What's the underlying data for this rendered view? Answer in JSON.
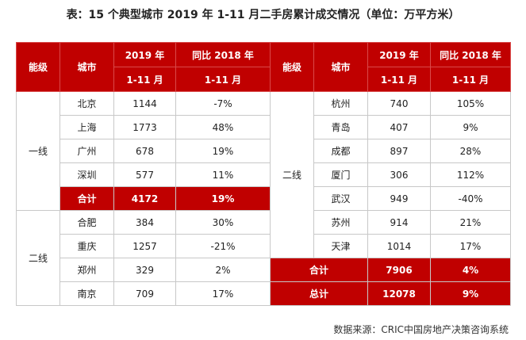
{
  "title": "表：15 个典型城市 2019 年 1-11 月二手房累计成交情况（单位：万平方米）",
  "headers": {
    "level": "能级",
    "city": "城市",
    "year_line1": "2019 年",
    "year_line2": "1-11 月",
    "yoy_line1": "同比 2018 年",
    "yoy_line2": "1-11 月"
  },
  "left_groups": [
    {
      "level": "一线",
      "rows": [
        {
          "city": "北京",
          "value": "1144",
          "yoy": "-7%"
        },
        {
          "city": "上海",
          "value": "1773",
          "yoy": "48%"
        },
        {
          "city": "广州",
          "value": "678",
          "yoy": "19%"
        },
        {
          "city": "深圳",
          "value": "577",
          "yoy": "11%"
        }
      ],
      "subtotal": {
        "label": "合计",
        "value": "4172",
        "yoy": "19%"
      }
    },
    {
      "level": "二线",
      "rows": [
        {
          "city": "合肥",
          "value": "384",
          "yoy": "30%"
        },
        {
          "city": "重庆",
          "value": "1257",
          "yoy": "-21%"
        },
        {
          "city": "郑州",
          "value": "329",
          "yoy": "2%"
        },
        {
          "city": "南京",
          "value": "709",
          "yoy": "17%"
        }
      ]
    }
  ],
  "right_group": {
    "level": "二线",
    "rows": [
      {
        "city": "杭州",
        "value": "740",
        "yoy": "105%"
      },
      {
        "city": "青岛",
        "value": "407",
        "yoy": "9%"
      },
      {
        "city": "成都",
        "value": "897",
        "yoy": "28%"
      },
      {
        "city": "厦门",
        "value": "306",
        "yoy": "112%"
      },
      {
        "city": "武汉",
        "value": "949",
        "yoy": "-40%"
      },
      {
        "city": "苏州",
        "value": "914",
        "yoy": "21%"
      },
      {
        "city": "天津",
        "value": "1014",
        "yoy": "17%"
      }
    ],
    "subtotal": {
      "label": "合计",
      "value": "7906",
      "yoy": "4%"
    }
  },
  "total": {
    "label": "总计",
    "value": "12078",
    "yoy": "9%"
  },
  "source": "数据来源：CRIC中国房地产决策咨询系统",
  "colors": {
    "header_bg": "#c00000",
    "header_text": "#ffffff",
    "border": "#c8c8c8"
  }
}
